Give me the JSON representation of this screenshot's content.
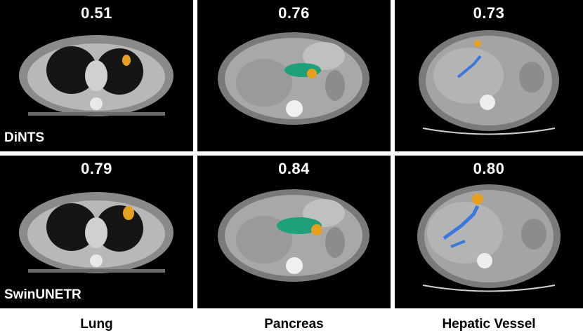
{
  "rows": [
    {
      "method": "DiNTS",
      "scores": [
        "0.51",
        "0.76",
        "0.73"
      ]
    },
    {
      "method": "SwinUNETR",
      "scores": [
        "0.79",
        "0.84",
        "0.80"
      ]
    }
  ],
  "columns": [
    "Lung",
    "Pancreas",
    "Hepatic Vessel"
  ],
  "colors": {
    "tumor": "#e8a020",
    "pancreas": "#1fa07a",
    "vessel": "#3a78e0",
    "background": "#000000"
  }
}
